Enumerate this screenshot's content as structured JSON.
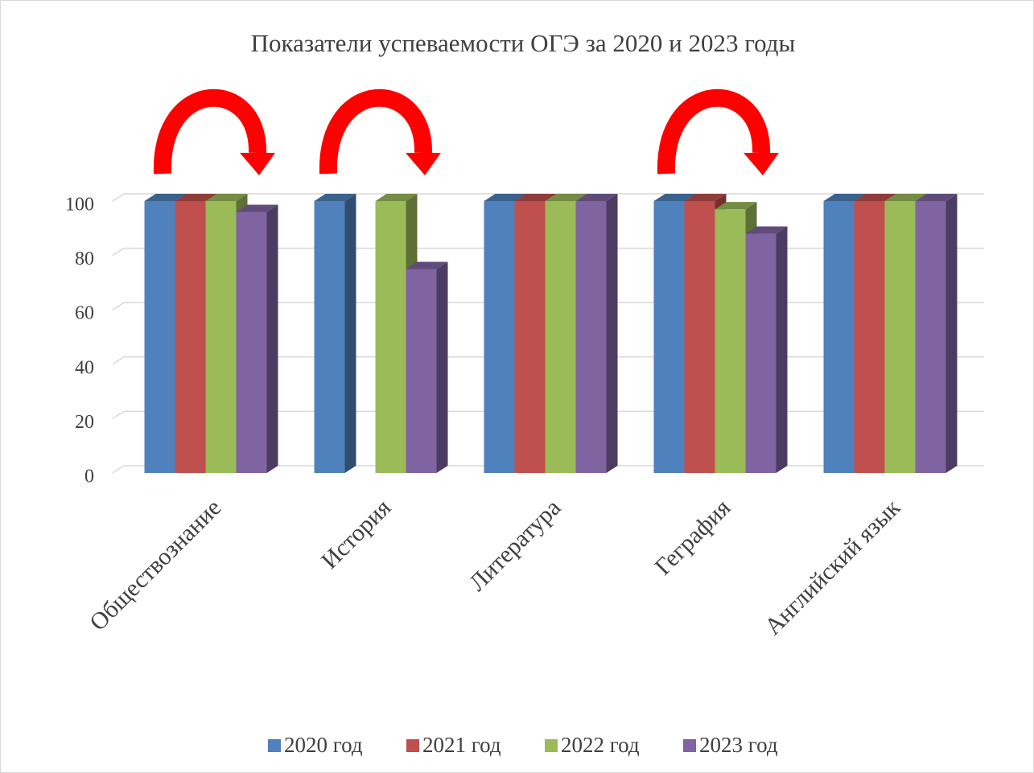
{
  "chart_data": {
    "type": "bar3d",
    "title": "Показатели успеваемости ОГЭ за 2020 и 2023 годы",
    "categories": [
      "Обществознание",
      "История",
      "Литература",
      "Геграфия",
      "Английский язык"
    ],
    "series": [
      {
        "name": "2020 год",
        "color": "#4f81bd",
        "values": [
          100,
          100,
          100,
          100,
          100
        ]
      },
      {
        "name": "2021 год",
        "color": "#c0504d",
        "values": [
          100,
          null,
          100,
          100,
          100
        ]
      },
      {
        "name": "2022 год",
        "color": "#9bbb59",
        "values": [
          100,
          100,
          100,
          97,
          100
        ]
      },
      {
        "name": "2023 год",
        "color": "#8064a2",
        "values": [
          96,
          75,
          100,
          88,
          100
        ]
      }
    ],
    "ylim": [
      0,
      100
    ],
    "yticks": [
      0,
      20,
      40,
      60,
      80,
      100
    ],
    "grid": true,
    "legend": "bottom"
  }
}
